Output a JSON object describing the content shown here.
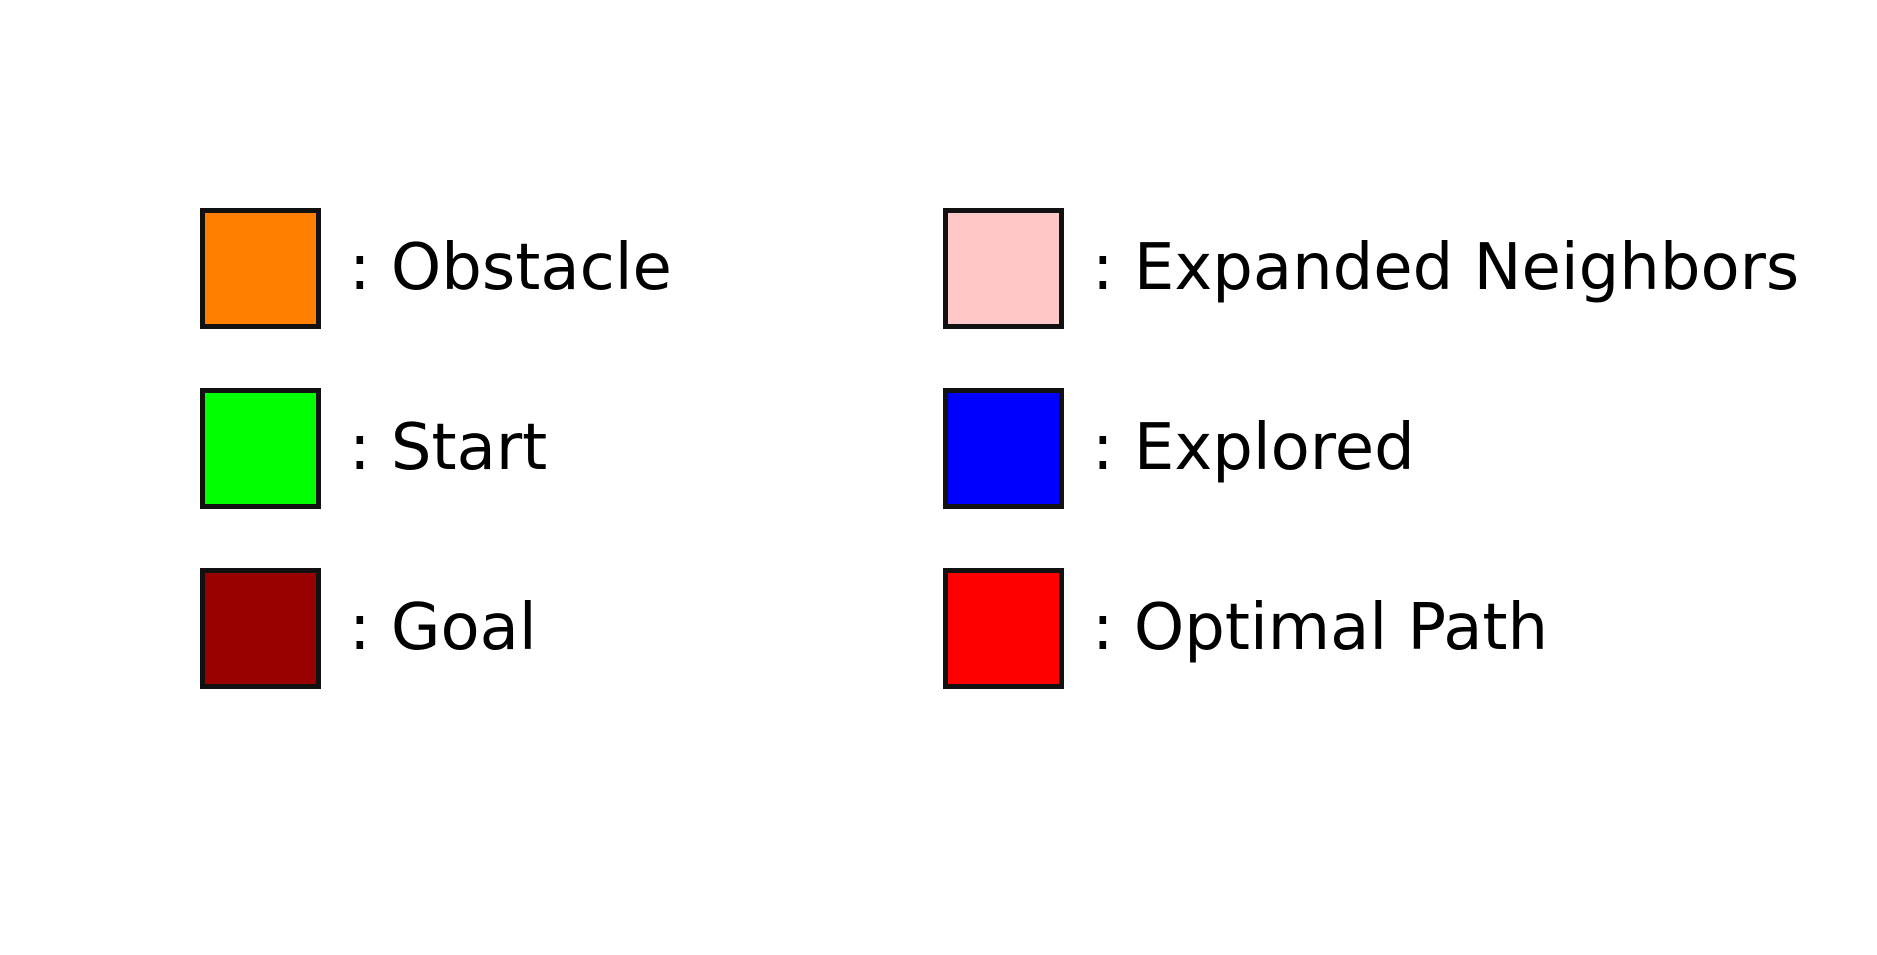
{
  "legend": {
    "left": [
      {
        "label": ": Obstacle",
        "color": "#ff8000"
      },
      {
        "label": ": Start",
        "color": "#00ff00"
      },
      {
        "label": ": Goal",
        "color": "#990000"
      }
    ],
    "right": [
      {
        "label": ": Expanded Neighbors",
        "color": "#ffc8c8"
      },
      {
        "label": ": Explored",
        "color": "#0000ff"
      },
      {
        "label": ": Optimal Path",
        "color": "#ff0000"
      }
    ]
  }
}
